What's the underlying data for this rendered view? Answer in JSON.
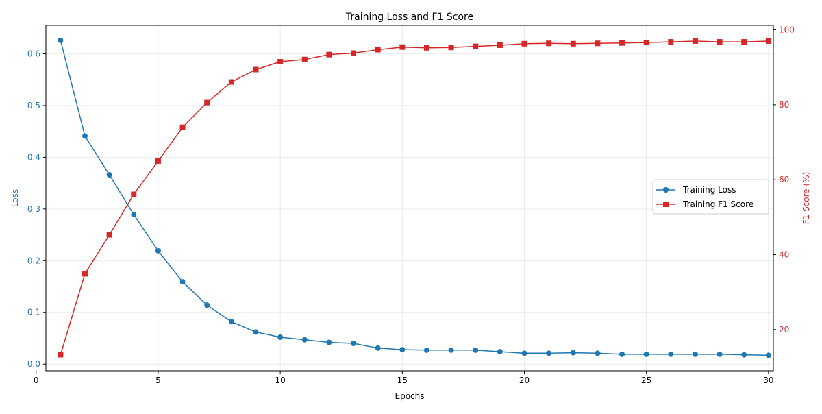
{
  "chart_data": {
    "type": "line",
    "title": "Training Loss and F1 Score",
    "xlabel": "Epochs",
    "x": [
      1,
      2,
      3,
      4,
      5,
      6,
      7,
      8,
      9,
      10,
      11,
      12,
      13,
      14,
      15,
      16,
      17,
      18,
      19,
      20,
      21,
      22,
      23,
      24,
      25,
      26,
      27,
      28,
      29,
      30
    ],
    "xlim": [
      0.4,
      30.2
    ],
    "xticks": [
      0,
      5,
      10,
      15,
      20,
      25,
      30
    ],
    "left_axis": {
      "label": "Loss",
      "color": "#1f77b4",
      "ylim": [
        -0.013,
        0.655
      ],
      "ticks": [
        "0.0",
        "0.1",
        "0.2",
        "0.3",
        "0.4",
        "0.5",
        "0.6"
      ]
    },
    "right_axis": {
      "label": "F1 Score (%)",
      "color": "#d62728",
      "ylim": [
        9.0,
        101.2
      ],
      "ticks": [
        "20",
        "40",
        "60",
        "80",
        "100"
      ]
    },
    "grid": true,
    "legend_position": "center-right",
    "series": [
      {
        "name": "Training Loss",
        "axis": "left",
        "color": "#1f77b4",
        "marker": "circle",
        "values": [
          0.626,
          0.441,
          0.366,
          0.289,
          0.219,
          0.159,
          0.114,
          0.082,
          0.062,
          0.052,
          0.047,
          0.042,
          0.04,
          0.031,
          0.028,
          0.027,
          0.027,
          0.027,
          0.024,
          0.021,
          0.021,
          0.022,
          0.021,
          0.019,
          0.019,
          0.019,
          0.019,
          0.019,
          0.018,
          0.017
        ]
      },
      {
        "name": "Training F1 Score",
        "axis": "right",
        "color": "#d62728",
        "marker": "square",
        "values": [
          13.3,
          34.9,
          45.3,
          56.1,
          65.0,
          74.0,
          80.6,
          86.1,
          89.4,
          91.5,
          92.1,
          93.4,
          93.8,
          94.7,
          95.4,
          95.2,
          95.3,
          95.6,
          95.9,
          96.3,
          96.4,
          96.3,
          96.4,
          96.5,
          96.6,
          96.8,
          97.0,
          96.8,
          96.8,
          97.0
        ]
      }
    ]
  }
}
